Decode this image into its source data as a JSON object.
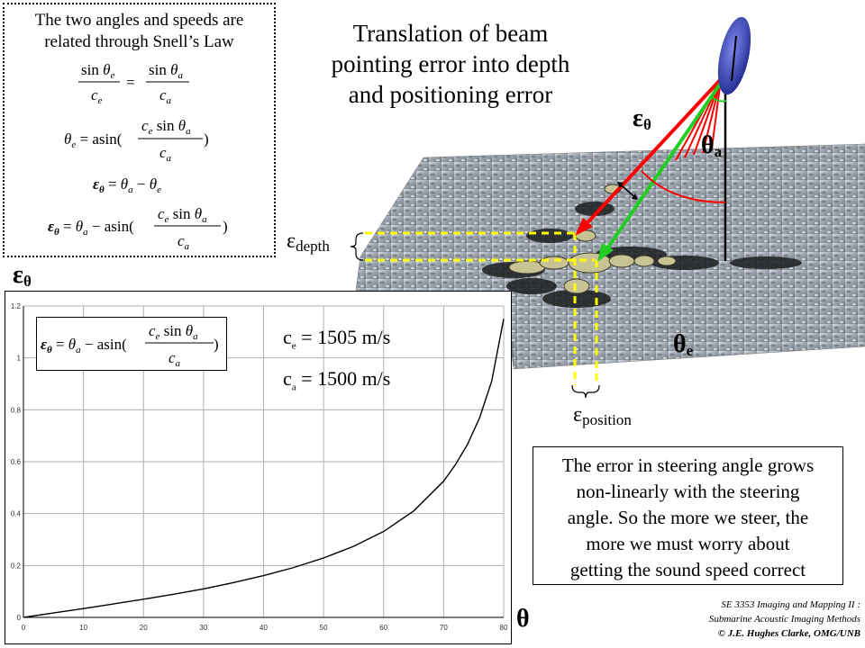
{
  "snell": {
    "intro_line1": "The two angles and speeds are",
    "intro_line2": "related through Snell’s Law"
  },
  "title": {
    "line1": "Translation of beam",
    "line2": "pointing error into depth",
    "line3": "and positioning error"
  },
  "labels": {
    "eps_symbol": "ε",
    "theta_symbol": "θ",
    "sub_theta": "θ",
    "sub_a": "a",
    "sub_e": "e",
    "sub_depth": "depth",
    "sub_position": "position"
  },
  "chart_params": {
    "ce_prefix": "c",
    "ce_sub": "e",
    "ce_value": " = 1505 m/s",
    "ca_prefix": "c",
    "ca_sub": "a",
    "ca_value": " = 1500 m/s"
  },
  "note": {
    "line1": "The error in steering angle grows",
    "line2": "non-linearly with the steering",
    "line3": "angle.  So the more we steer, the",
    "line4": "more we must worry about",
    "line5": "getting the sound speed correct"
  },
  "credit": {
    "line1": "SE 3353 Imaging and Mapping II :",
    "line2": "Submarine Acoustic Imaging Methods",
    "line3": "© J.E. Hughes Clarke, OMG/UNB"
  },
  "colors": {
    "beam_red": "#ff0000",
    "beam_green": "#22cc22",
    "guide_yellow": "#ffff00",
    "transducer_blue": "#3344cc"
  },
  "chart_data": {
    "type": "line",
    "title": "",
    "xlabel": "θ",
    "ylabel": "εθ",
    "x_ticks": [
      "0",
      "10",
      "20",
      "30",
      "40",
      "50",
      "60",
      "70",
      "80"
    ],
    "y_ticks": [
      "0",
      "0.2",
      "0.4",
      "0.6",
      "0.8",
      "1",
      "1.2"
    ],
    "xlim": [
      0,
      80
    ],
    "ylim": [
      0,
      1.2
    ],
    "grid": true,
    "series": [
      {
        "x": [
          0,
          5,
          10,
          15,
          20,
          25,
          30,
          35,
          40,
          45,
          50,
          55,
          60,
          65,
          70,
          72,
          74,
          76,
          78,
          80
        ],
        "values": [
          0,
          0.017,
          0.034,
          0.052,
          0.07,
          0.089,
          0.11,
          0.134,
          0.161,
          0.192,
          0.229,
          0.274,
          0.331,
          0.41,
          0.525,
          0.59,
          0.668,
          0.77,
          0.91,
          1.15
        ]
      }
    ]
  }
}
